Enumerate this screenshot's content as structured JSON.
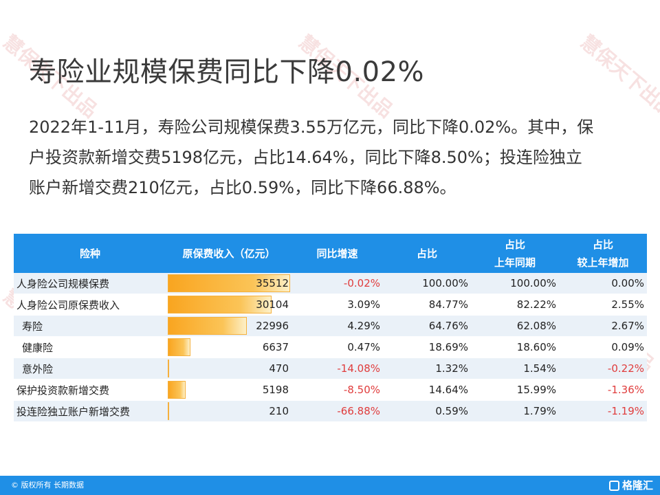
{
  "title": "寿险业规模保费同比下降0.02%",
  "paragraph": [
    "2022年1-11月，寿险公司规模保费3.55万亿元，同比下降0.02%。其中，保",
    "户投资款新增交费5198亿元，占比14.64%，同比下降8.50%；投连险独立",
    "账户新增交费210亿元，占比0.59%，同比下降66.88%。"
  ],
  "table": {
    "headers": {
      "type": "险种",
      "income": "原保费收入（亿元）",
      "yoy": "同比增速",
      "share": "占比",
      "share_ly_1": "占比",
      "share_ly_2": "上年同期",
      "share_chg_1": "占比",
      "share_chg_2": "较上年增加"
    },
    "rows": [
      {
        "type": "人身险公司规模保费",
        "income": "35512",
        "income_value": 35512,
        "yoy": "-0.02%",
        "share": "100.00%",
        "share_ly": "100.00%",
        "share_chg": "0.00%"
      },
      {
        "type": "人身险公司原保费收入",
        "income": "30104",
        "income_value": 30104,
        "yoy": "3.09%",
        "share": "84.77%",
        "share_ly": "82.22%",
        "share_chg": "2.55%"
      },
      {
        "type": "寿险",
        "income": "22996",
        "income_value": 22996,
        "yoy": "4.29%",
        "share": "64.76%",
        "share_ly": "62.08%",
        "share_chg": "2.67%"
      },
      {
        "type": "健康险",
        "income": "6637",
        "income_value": 6637,
        "yoy": "0.47%",
        "share": "18.69%",
        "share_ly": "18.60%",
        "share_chg": "0.09%"
      },
      {
        "type": "意外险",
        "income": "470",
        "income_value": 470,
        "yoy": "-14.08%",
        "share": "1.32%",
        "share_ly": "1.54%",
        "share_chg": "-0.22%"
      },
      {
        "type": "保护投资款新增交费",
        "income": "5198",
        "income_value": 5198,
        "yoy": "-8.50%",
        "share": "14.64%",
        "share_ly": "15.99%",
        "share_chg": "-1.36%"
      },
      {
        "type": "投连险独立账户新增交费",
        "income": "210",
        "income_value": 210,
        "yoy": "-66.88%",
        "share": "0.59%",
        "share_ly": "1.79%",
        "share_chg": "-1.19%"
      }
    ],
    "bar_max": 35512
  },
  "watermark": "慧保天下出品",
  "footer": {
    "copyright": "© 版权所有 长期数据",
    "logo": "格隆汇"
  },
  "colors": {
    "header_bg": "#1f8fe6",
    "negative": "#e03c3c",
    "bar": "#f9a520"
  }
}
